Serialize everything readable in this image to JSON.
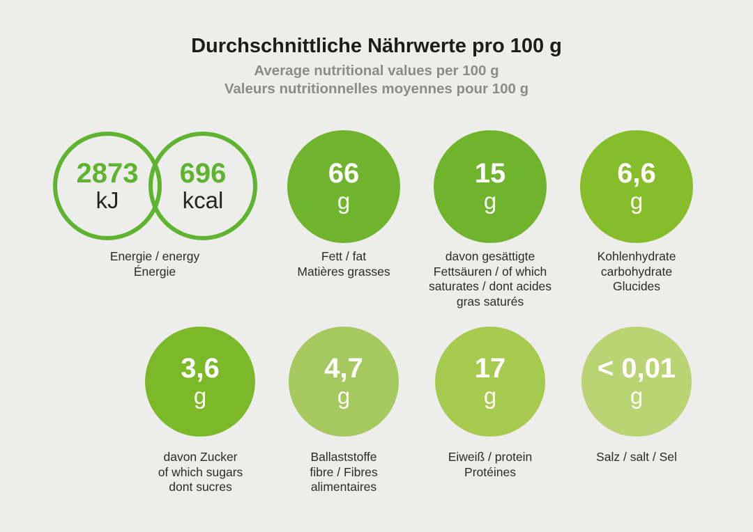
{
  "header": {
    "title_de": "Durchschnittliche Nährwerte pro 100 g",
    "subtitle_en": "Average nutritional values per 100 g",
    "subtitle_fr": "Valeurs nutritionnelles moyennes pour 100 g"
  },
  "colors": {
    "background": "#ededeb",
    "accent_green": "#5eb42f",
    "title_text": "#1c1c1a",
    "subtitle_text": "#8b8b8a",
    "label_text": "#2c2b29",
    "circle_text": "#ffffff"
  },
  "energy": {
    "kj_value": "2873",
    "kj_unit": "kJ",
    "kcal_value": "696",
    "kcal_unit": "kcal",
    "labels": [
      "Energie / energy",
      "Énergie"
    ]
  },
  "nutrients": [
    {
      "id": "fat",
      "value": "66",
      "unit": "g",
      "color": "#6fb42c",
      "labels": [
        "Fett / fat",
        "Matières grasses"
      ]
    },
    {
      "id": "saturates",
      "value": "15",
      "unit": "g",
      "color": "#6fb42c",
      "labels": [
        "davon gesättigte",
        "Fettsäuren / of which",
        "saturates / dont acides",
        "gras saturés"
      ]
    },
    {
      "id": "carbohydrate",
      "value": "6,6",
      "unit": "g",
      "color": "#86bd2b",
      "labels": [
        "Kohlenhydrate",
        "carbohydrate",
        "Glucides"
      ]
    },
    {
      "id": "sugars",
      "value": "3,6",
      "unit": "g",
      "color": "#7cb929",
      "labels": [
        "davon Zucker",
        "of which sugars",
        "dont sucres"
      ]
    },
    {
      "id": "fibre",
      "value": "4,7",
      "unit": "g",
      "color": "#a5c95e",
      "labels": [
        "Ballaststoffe",
        "fibre / Fibres",
        "alimentaires"
      ]
    },
    {
      "id": "protein",
      "value": "17",
      "unit": "g",
      "color": "#a6ca4d",
      "labels": [
        "Eiweiß / protein",
        "Protéines"
      ]
    },
    {
      "id": "salt",
      "value": "< 0,01",
      "unit": "g",
      "color": "#bad373",
      "labels": [
        "Salz / salt / Sel"
      ]
    }
  ]
}
